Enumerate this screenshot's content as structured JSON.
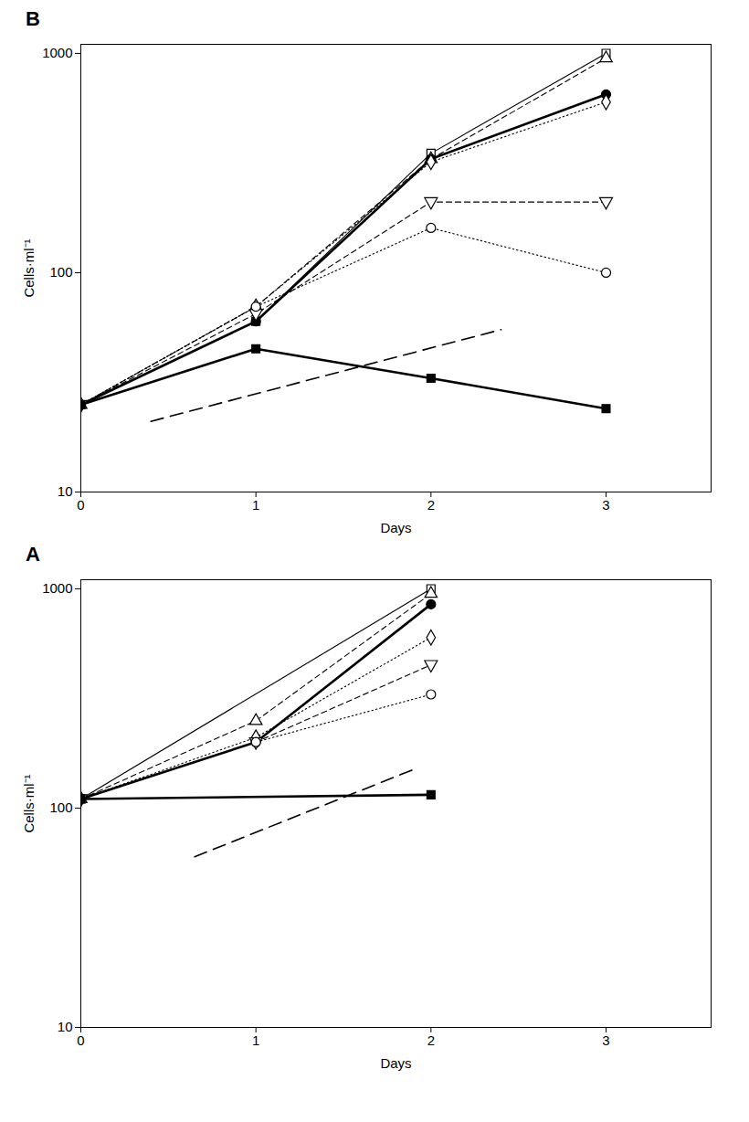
{
  "chart_data": [
    {
      "type": "line",
      "title": "B",
      "x_label": "Days",
      "y_label": "Cells·ml⁻¹",
      "log": "y",
      "xlim": [
        0,
        3.6
      ],
      "xticks": [
        0,
        1,
        2,
        3
      ],
      "ylim": [
        10,
        1100
      ],
      "yticks": [
        10,
        100,
        1000
      ],
      "series": [
        {
          "color": "#000000",
          "marker": "open-square",
          "line_style": "solid",
          "x": [
            0,
            1,
            2,
            3
          ],
          "values": [
            25,
            60,
            350,
            1000
          ]
        },
        {
          "color": "#000000",
          "marker": "open-triangle",
          "line_style": "dashed",
          "x": [
            0,
            1,
            2,
            3
          ],
          "values": [
            25,
            70,
            330,
            950
          ]
        },
        {
          "color": "#000000",
          "marker": "filled-circle",
          "line_style": "thick",
          "x": [
            0,
            1,
            2,
            3
          ],
          "values": [
            25,
            60,
            330,
            650
          ]
        },
        {
          "color": "#000000",
          "marker": "open-diamond",
          "line_style": "dotted",
          "x": [
            0,
            1,
            2,
            3
          ],
          "values": [
            25,
            70,
            320,
            600
          ]
        },
        {
          "color": "#000000",
          "marker": "open-triangle-down",
          "line_style": "dashed",
          "x": [
            0,
            1,
            2,
            3
          ],
          "values": [
            25,
            65,
            210,
            210
          ]
        },
        {
          "color": "#000000",
          "marker": "open-circle",
          "line_style": "dotted",
          "x": [
            0,
            1,
            2,
            3
          ],
          "values": [
            25,
            70,
            160,
            100
          ]
        },
        {
          "color": "#000000",
          "marker": "filled-square",
          "line_style": "thick",
          "x": [
            0,
            1,
            2,
            3
          ],
          "values": [
            25,
            45,
            33,
            24
          ]
        },
        {
          "color": "#000000",
          "marker": "none",
          "line_style": "longdash",
          "x": [
            0.4,
            2.4
          ],
          "values": [
            21,
            55
          ]
        }
      ]
    },
    {
      "type": "line",
      "title": "A",
      "x_label": "Days",
      "y_label": "Cells·ml⁻¹",
      "log": "y",
      "xlim": [
        0,
        3.6
      ],
      "xticks": [
        0,
        1,
        2,
        3
      ],
      "ylim": [
        10,
        1100
      ],
      "yticks": [
        10,
        100,
        1000
      ],
      "series": [
        {
          "color": "#000000",
          "marker": "open-square",
          "line_style": "solid",
          "x": [
            0,
            2
          ],
          "values": [
            110,
            1000
          ]
        },
        {
          "color": "#000000",
          "marker": "open-triangle",
          "line_style": "dashed",
          "x": [
            0,
            1,
            2
          ],
          "values": [
            110,
            250,
            950
          ]
        },
        {
          "color": "#000000",
          "marker": "filled-circle",
          "line_style": "thick",
          "x": [
            0,
            1,
            2
          ],
          "values": [
            110,
            200,
            850
          ]
        },
        {
          "color": "#000000",
          "marker": "open-diamond",
          "line_style": "dotted",
          "x": [
            0,
            1,
            2
          ],
          "values": [
            110,
            210,
            600
          ]
        },
        {
          "color": "#000000",
          "marker": "open-triangle-down",
          "line_style": "dashed",
          "x": [
            0,
            1,
            2
          ],
          "values": [
            110,
            200,
            450
          ]
        },
        {
          "color": "#000000",
          "marker": "open-circle",
          "line_style": "dotted",
          "x": [
            0,
            1,
            2
          ],
          "values": [
            110,
            200,
            330
          ]
        },
        {
          "color": "#000000",
          "marker": "filled-square",
          "line_style": "thick",
          "x": [
            0,
            2
          ],
          "values": [
            110,
            115
          ]
        },
        {
          "color": "#000000",
          "marker": "none",
          "line_style": "longdash",
          "x": [
            0.65,
            1.9
          ],
          "values": [
            60,
            150
          ]
        }
      ]
    }
  ]
}
